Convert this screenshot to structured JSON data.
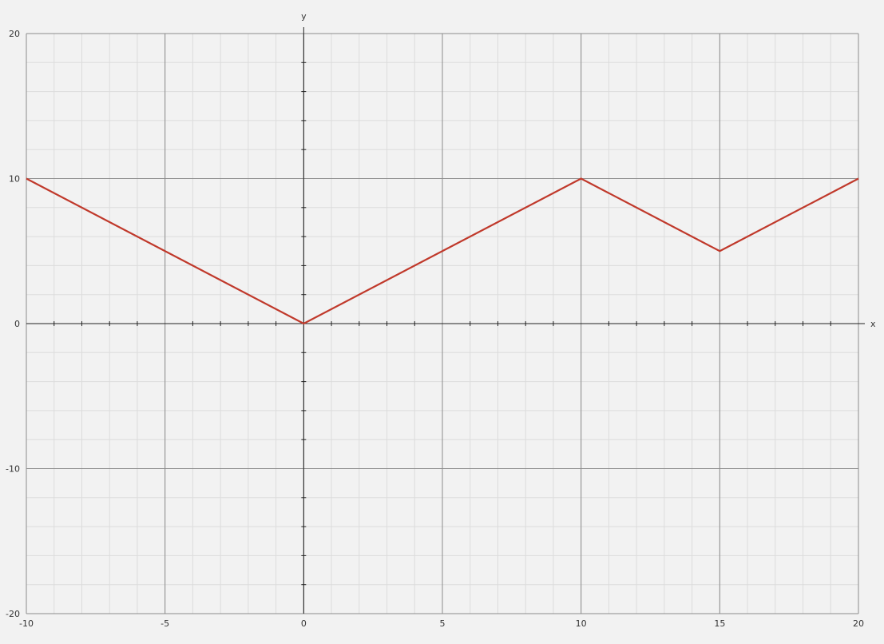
{
  "chart_data": {
    "type": "line",
    "title": "",
    "xlabel": "x",
    "ylabel": "y",
    "xlim": [
      -10,
      20
    ],
    "ylim": [
      -20,
      20
    ],
    "x_major_ticks": [
      -10,
      -5,
      0,
      5,
      10,
      15,
      20
    ],
    "y_major_ticks": [
      -20,
      -10,
      0,
      10,
      20
    ],
    "x_tick_labels": [
      "-10",
      "-5",
      "0",
      "5",
      "10",
      "15",
      "20"
    ],
    "y_tick_labels": [
      "-20",
      "-10",
      "0",
      "10",
      "20"
    ],
    "grid": true,
    "legend": "none",
    "series": [
      {
        "x": [
          -10,
          0,
          10,
          15,
          20
        ],
        "y": [
          10,
          0,
          10,
          5,
          10
        ],
        "color": "#c0392b"
      }
    ],
    "colors": {
      "background": "#f2f2f2",
      "major_grid": "#8c8c8c",
      "minor_grid": "#dcdcdc",
      "axis": "#222222",
      "line": "#c0392b"
    }
  }
}
